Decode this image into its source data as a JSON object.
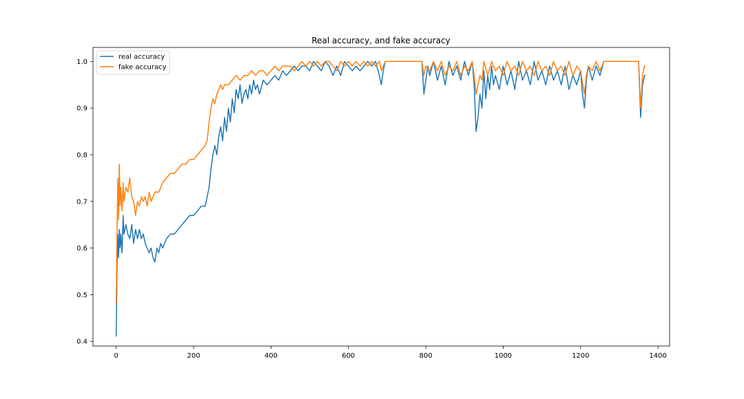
{
  "chart_data": {
    "type": "line",
    "title": "Real accuracy, and fake accuracy",
    "xlabel": "",
    "ylabel": "",
    "xlim": [
      -60,
      1430
    ],
    "ylim": [
      0.39,
      1.03
    ],
    "grid": false,
    "legend_position": "top-left",
    "x_ticks": [
      0,
      200,
      400,
      600,
      800,
      1000,
      1200,
      1400
    ],
    "x_tick_labels": [
      "0",
      "200",
      "400",
      "600",
      "800",
      "1000",
      "1200",
      "1400"
    ],
    "y_ticks": [
      0.4,
      0.5,
      0.6,
      0.7,
      0.8,
      0.9,
      1.0
    ],
    "y_tick_labels": [
      "0.4",
      "0.5",
      "0.6",
      "0.7",
      "0.8",
      "0.9",
      "1.0"
    ],
    "series": [
      {
        "name": "real accuracy",
        "color": "#1f77b4",
        "points": [
          [
            0,
            0.41
          ],
          [
            2,
            0.55
          ],
          [
            4,
            0.63
          ],
          [
            6,
            0.58
          ],
          [
            8,
            0.64
          ],
          [
            10,
            0.6
          ],
          [
            12,
            0.63
          ],
          [
            15,
            0.59
          ],
          [
            18,
            0.67
          ],
          [
            20,
            0.63
          ],
          [
            25,
            0.65
          ],
          [
            30,
            0.63
          ],
          [
            35,
            0.62
          ],
          [
            40,
            0.65
          ],
          [
            45,
            0.61
          ],
          [
            50,
            0.64
          ],
          [
            55,
            0.62
          ],
          [
            60,
            0.64
          ],
          [
            65,
            0.62
          ],
          [
            70,
            0.63
          ],
          [
            75,
            0.61
          ],
          [
            80,
            0.6
          ],
          [
            85,
            0.59
          ],
          [
            90,
            0.6
          ],
          [
            95,
            0.58
          ],
          [
            100,
            0.57
          ],
          [
            105,
            0.6
          ],
          [
            110,
            0.59
          ],
          [
            115,
            0.61
          ],
          [
            120,
            0.6
          ],
          [
            130,
            0.62
          ],
          [
            140,
            0.63
          ],
          [
            150,
            0.63
          ],
          [
            160,
            0.64
          ],
          [
            170,
            0.65
          ],
          [
            180,
            0.66
          ],
          [
            190,
            0.67
          ],
          [
            200,
            0.67
          ],
          [
            210,
            0.68
          ],
          [
            220,
            0.69
          ],
          [
            230,
            0.69
          ],
          [
            235,
            0.71
          ],
          [
            240,
            0.73
          ],
          [
            245,
            0.77
          ],
          [
            250,
            0.8
          ],
          [
            255,
            0.82
          ],
          [
            260,
            0.8
          ],
          [
            265,
            0.84
          ],
          [
            270,
            0.86
          ],
          [
            275,
            0.83
          ],
          [
            280,
            0.88
          ],
          [
            285,
            0.85
          ],
          [
            290,
            0.9
          ],
          [
            295,
            0.87
          ],
          [
            300,
            0.92
          ],
          [
            305,
            0.89
          ],
          [
            310,
            0.94
          ],
          [
            315,
            0.92
          ],
          [
            320,
            0.95
          ],
          [
            325,
            0.91
          ],
          [
            330,
            0.93
          ],
          [
            335,
            0.94
          ],
          [
            340,
            0.92
          ],
          [
            345,
            0.95
          ],
          [
            350,
            0.93
          ],
          [
            355,
            0.96
          ],
          [
            360,
            0.94
          ],
          [
            365,
            0.95
          ],
          [
            370,
            0.93
          ],
          [
            380,
            0.96
          ],
          [
            390,
            0.95
          ],
          [
            400,
            0.96
          ],
          [
            410,
            0.97
          ],
          [
            420,
            0.96
          ],
          [
            430,
            0.98
          ],
          [
            440,
            0.97
          ],
          [
            450,
            0.98
          ],
          [
            460,
            0.99
          ],
          [
            470,
            0.98
          ],
          [
            480,
            0.99
          ],
          [
            490,
            0.99
          ],
          [
            500,
            0.98
          ],
          [
            510,
            1.0
          ],
          [
            520,
            0.99
          ],
          [
            530,
            0.98
          ],
          [
            540,
            1.0
          ],
          [
            550,
            0.99
          ],
          [
            560,
            0.97
          ],
          [
            570,
            0.99
          ],
          [
            580,
            0.97
          ],
          [
            590,
            1.0
          ],
          [
            600,
            0.99
          ],
          [
            610,
            0.98
          ],
          [
            620,
            0.99
          ],
          [
            630,
            0.98
          ],
          [
            640,
            0.99
          ],
          [
            650,
            1.0
          ],
          [
            660,
            0.99
          ],
          [
            670,
            1.0
          ],
          [
            680,
            0.97
          ],
          [
            685,
            0.95
          ],
          [
            690,
            0.98
          ],
          [
            695,
            1.0
          ],
          [
            700,
            1.0
          ],
          [
            750,
            1.0
          ],
          [
            790,
            1.0
          ],
          [
            795,
            0.93
          ],
          [
            800,
            0.96
          ],
          [
            805,
            0.99
          ],
          [
            810,
            0.97
          ],
          [
            820,
            1.0
          ],
          [
            830,
            0.96
          ],
          [
            840,
            0.99
          ],
          [
            850,
            0.95
          ],
          [
            860,
            1.0
          ],
          [
            870,
            0.97
          ],
          [
            880,
            0.99
          ],
          [
            890,
            0.96
          ],
          [
            900,
            1.0
          ],
          [
            910,
            0.97
          ],
          [
            920,
            1.0
          ],
          [
            925,
            0.95
          ],
          [
            930,
            0.85
          ],
          [
            935,
            0.88
          ],
          [
            940,
            0.93
          ],
          [
            945,
            0.9
          ],
          [
            950,
            0.98
          ],
          [
            955,
            0.92
          ],
          [
            960,
            0.97
          ],
          [
            965,
            0.94
          ],
          [
            970,
            0.99
          ],
          [
            975,
            0.95
          ],
          [
            980,
            0.97
          ],
          [
            990,
            0.94
          ],
          [
            1000,
            0.99
          ],
          [
            1010,
            0.95
          ],
          [
            1020,
            0.98
          ],
          [
            1030,
            0.94
          ],
          [
            1040,
            1.0
          ],
          [
            1050,
            0.96
          ],
          [
            1060,
            0.98
          ],
          [
            1070,
            0.95
          ],
          [
            1080,
            1.0
          ],
          [
            1090,
            0.96
          ],
          [
            1100,
            0.98
          ],
          [
            1110,
            0.95
          ],
          [
            1120,
            0.99
          ],
          [
            1130,
            0.96
          ],
          [
            1140,
            0.98
          ],
          [
            1150,
            0.95
          ],
          [
            1160,
            0.99
          ],
          [
            1170,
            0.94
          ],
          [
            1180,
            0.97
          ],
          [
            1190,
            0.95
          ],
          [
            1200,
            0.98
          ],
          [
            1205,
            0.93
          ],
          [
            1210,
            0.9
          ],
          [
            1215,
            0.96
          ],
          [
            1220,
            0.99
          ],
          [
            1230,
            0.96
          ],
          [
            1240,
            0.99
          ],
          [
            1250,
            0.97
          ],
          [
            1260,
            1.0
          ],
          [
            1300,
            1.0
          ],
          [
            1350,
            1.0
          ],
          [
            1355,
            0.88
          ],
          [
            1360,
            0.95
          ],
          [
            1365,
            0.97
          ],
          [
            1368,
            0.97
          ]
        ]
      },
      {
        "name": "fake accuracy",
        "color": "#ff7f0e",
        "points": [
          [
            0,
            0.48
          ],
          [
            2,
            0.62
          ],
          [
            4,
            0.75
          ],
          [
            6,
            0.66
          ],
          [
            8,
            0.78
          ],
          [
            10,
            0.69
          ],
          [
            12,
            0.73
          ],
          [
            15,
            0.68
          ],
          [
            18,
            0.74
          ],
          [
            20,
            0.7
          ],
          [
            25,
            0.73
          ],
          [
            30,
            0.72
          ],
          [
            35,
            0.75
          ],
          [
            40,
            0.71
          ],
          [
            45,
            0.7
          ],
          [
            50,
            0.67
          ],
          [
            55,
            0.7
          ],
          [
            60,
            0.69
          ],
          [
            65,
            0.71
          ],
          [
            70,
            0.7
          ],
          [
            75,
            0.71
          ],
          [
            80,
            0.69
          ],
          [
            85,
            0.72
          ],
          [
            90,
            0.7
          ],
          [
            95,
            0.71
          ],
          [
            100,
            0.72
          ],
          [
            110,
            0.72
          ],
          [
            120,
            0.74
          ],
          [
            130,
            0.75
          ],
          [
            140,
            0.76
          ],
          [
            150,
            0.76
          ],
          [
            160,
            0.77
          ],
          [
            170,
            0.78
          ],
          [
            180,
            0.78
          ],
          [
            190,
            0.79
          ],
          [
            200,
            0.79
          ],
          [
            210,
            0.8
          ],
          [
            220,
            0.81
          ],
          [
            230,
            0.82
          ],
          [
            235,
            0.83
          ],
          [
            240,
            0.87
          ],
          [
            245,
            0.9
          ],
          [
            250,
            0.92
          ],
          [
            255,
            0.91
          ],
          [
            260,
            0.93
          ],
          [
            265,
            0.94
          ],
          [
            270,
            0.95
          ],
          [
            275,
            0.94
          ],
          [
            280,
            0.95
          ],
          [
            290,
            0.95
          ],
          [
            300,
            0.96
          ],
          [
            310,
            0.97
          ],
          [
            320,
            0.96
          ],
          [
            330,
            0.97
          ],
          [
            340,
            0.97
          ],
          [
            350,
            0.98
          ],
          [
            360,
            0.97
          ],
          [
            370,
            0.98
          ],
          [
            380,
            0.98
          ],
          [
            390,
            0.97
          ],
          [
            400,
            0.98
          ],
          [
            410,
            0.99
          ],
          [
            420,
            0.98
          ],
          [
            430,
            0.99
          ],
          [
            440,
            0.99
          ],
          [
            450,
            0.99
          ],
          [
            460,
            0.98
          ],
          [
            470,
            0.99
          ],
          [
            480,
            1.0
          ],
          [
            490,
            0.99
          ],
          [
            500,
            1.0
          ],
          [
            510,
            0.99
          ],
          [
            520,
            1.0
          ],
          [
            530,
            0.99
          ],
          [
            540,
            1.0
          ],
          [
            550,
            1.0
          ],
          [
            560,
            0.99
          ],
          [
            570,
            0.98
          ],
          [
            580,
            1.0
          ],
          [
            590,
            0.99
          ],
          [
            600,
            1.0
          ],
          [
            610,
            0.99
          ],
          [
            620,
            1.0
          ],
          [
            630,
            0.99
          ],
          [
            640,
            1.0
          ],
          [
            650,
            0.99
          ],
          [
            660,
            1.0
          ],
          [
            670,
            0.99
          ],
          [
            680,
            1.0
          ],
          [
            685,
            0.98
          ],
          [
            690,
            0.99
          ],
          [
            695,
            1.0
          ],
          [
            700,
            1.0
          ],
          [
            750,
            1.0
          ],
          [
            790,
            1.0
          ],
          [
            795,
            0.97
          ],
          [
            800,
            0.99
          ],
          [
            810,
            0.98
          ],
          [
            820,
            1.0
          ],
          [
            830,
            0.98
          ],
          [
            840,
            1.0
          ],
          [
            850,
            0.97
          ],
          [
            860,
            0.99
          ],
          [
            870,
            0.98
          ],
          [
            880,
            1.0
          ],
          [
            890,
            0.97
          ],
          [
            900,
            0.99
          ],
          [
            910,
            0.98
          ],
          [
            920,
            1.0
          ],
          [
            925,
            0.97
          ],
          [
            930,
            0.93
          ],
          [
            935,
            0.95
          ],
          [
            940,
            0.97
          ],
          [
            945,
            0.96
          ],
          [
            950,
            1.0
          ],
          [
            960,
            0.97
          ],
          [
            970,
            1.0
          ],
          [
            980,
            0.98
          ],
          [
            990,
            0.99
          ],
          [
            1000,
            0.97
          ],
          [
            1010,
            1.0
          ],
          [
            1020,
            0.98
          ],
          [
            1030,
            0.99
          ],
          [
            1040,
            0.97
          ],
          [
            1050,
            1.0
          ],
          [
            1060,
            0.98
          ],
          [
            1070,
            0.99
          ],
          [
            1080,
            0.97
          ],
          [
            1090,
            1.0
          ],
          [
            1100,
            0.98
          ],
          [
            1110,
            0.99
          ],
          [
            1120,
            0.97
          ],
          [
            1130,
            1.0
          ],
          [
            1140,
            0.98
          ],
          [
            1150,
            0.99
          ],
          [
            1160,
            0.97
          ],
          [
            1170,
            1.0
          ],
          [
            1180,
            0.97
          ],
          [
            1190,
            0.99
          ],
          [
            1200,
            0.98
          ],
          [
            1210,
            0.93
          ],
          [
            1215,
            0.97
          ],
          [
            1220,
            0.99
          ],
          [
            1230,
            0.98
          ],
          [
            1240,
            1.0
          ],
          [
            1250,
            0.98
          ],
          [
            1260,
            1.0
          ],
          [
            1300,
            1.0
          ],
          [
            1350,
            1.0
          ],
          [
            1355,
            0.9
          ],
          [
            1360,
            0.97
          ],
          [
            1365,
            0.99
          ],
          [
            1368,
            0.99
          ]
        ]
      }
    ]
  }
}
